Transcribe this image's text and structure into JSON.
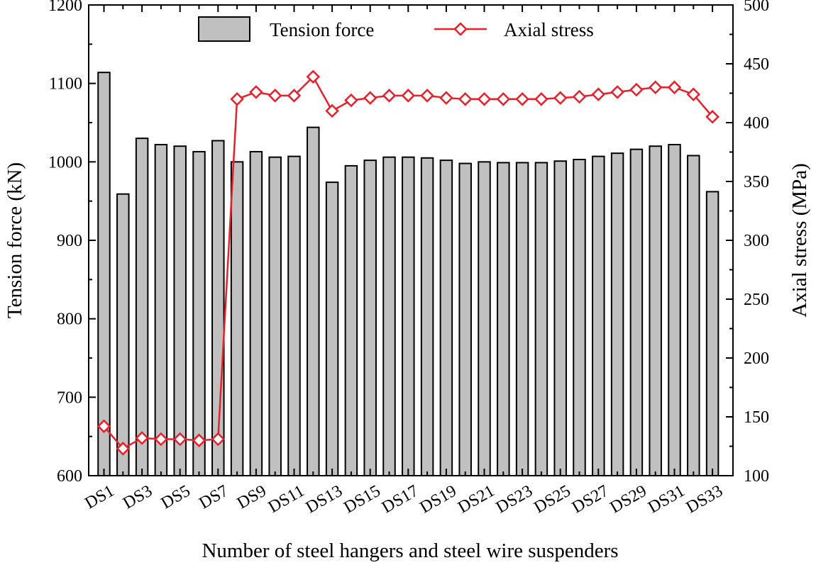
{
  "chart_data": {
    "type": "bar",
    "title": "",
    "xlabel": "Number of steel hangers and steel wire suspenders",
    "ylabel": "Tension force (kN)",
    "y2label": "Axial stress (MPa)",
    "ylim": [
      600,
      1200
    ],
    "y2lim": [
      100,
      500
    ],
    "yticks": [
      600,
      700,
      800,
      900,
      1000,
      1100,
      1200
    ],
    "y2ticks": [
      100,
      150,
      200,
      250,
      300,
      350,
      400,
      450,
      500
    ],
    "categories": [
      "DS1",
      "DS2",
      "DS3",
      "DS4",
      "DS5",
      "DS6",
      "DS7",
      "DS8",
      "DS9",
      "DS10",
      "DS11",
      "DS12",
      "DS13",
      "DS14",
      "DS15",
      "DS16",
      "DS17",
      "DS18",
      "DS19",
      "DS20",
      "DS21",
      "DS22",
      "DS23",
      "DS24",
      "DS25",
      "DS26",
      "DS27",
      "DS28",
      "DS29",
      "DS30",
      "DS31",
      "DS32",
      "DS33"
    ],
    "xtick_labels": [
      "DS1",
      "DS3",
      "DS5",
      "DS7",
      "DS9",
      "DS11",
      "DS13",
      "DS15",
      "DS17",
      "DS19",
      "DS21",
      "DS23",
      "DS25",
      "DS27",
      "DS29",
      "DS31",
      "DS33"
    ],
    "series": [
      {
        "name": "Tension force",
        "type": "bar",
        "axis": "left",
        "color": "#c0c0c0",
        "values": [
          1114,
          959,
          1030,
          1022,
          1020,
          1013,
          1027,
          1000,
          1013,
          1006,
          1007,
          1044,
          974,
          995,
          1002,
          1006,
          1006,
          1005,
          1002,
          998,
          1000,
          999,
          999,
          999,
          1001,
          1003,
          1007,
          1011,
          1016,
          1020,
          1022,
          1008,
          962
        ]
      },
      {
        "name": "Axial stress",
        "type": "line",
        "axis": "right",
        "color": "#e8202a",
        "values": [
          142,
          123,
          132,
          131,
          131,
          130,
          131,
          420,
          426,
          423,
          423,
          439,
          410,
          419,
          421,
          423,
          423,
          423,
          421,
          420,
          420,
          420,
          420,
          420,
          421,
          422,
          424,
          426,
          428,
          430,
          430,
          424,
          405
        ]
      }
    ],
    "legend": {
      "position": "top-center"
    }
  }
}
